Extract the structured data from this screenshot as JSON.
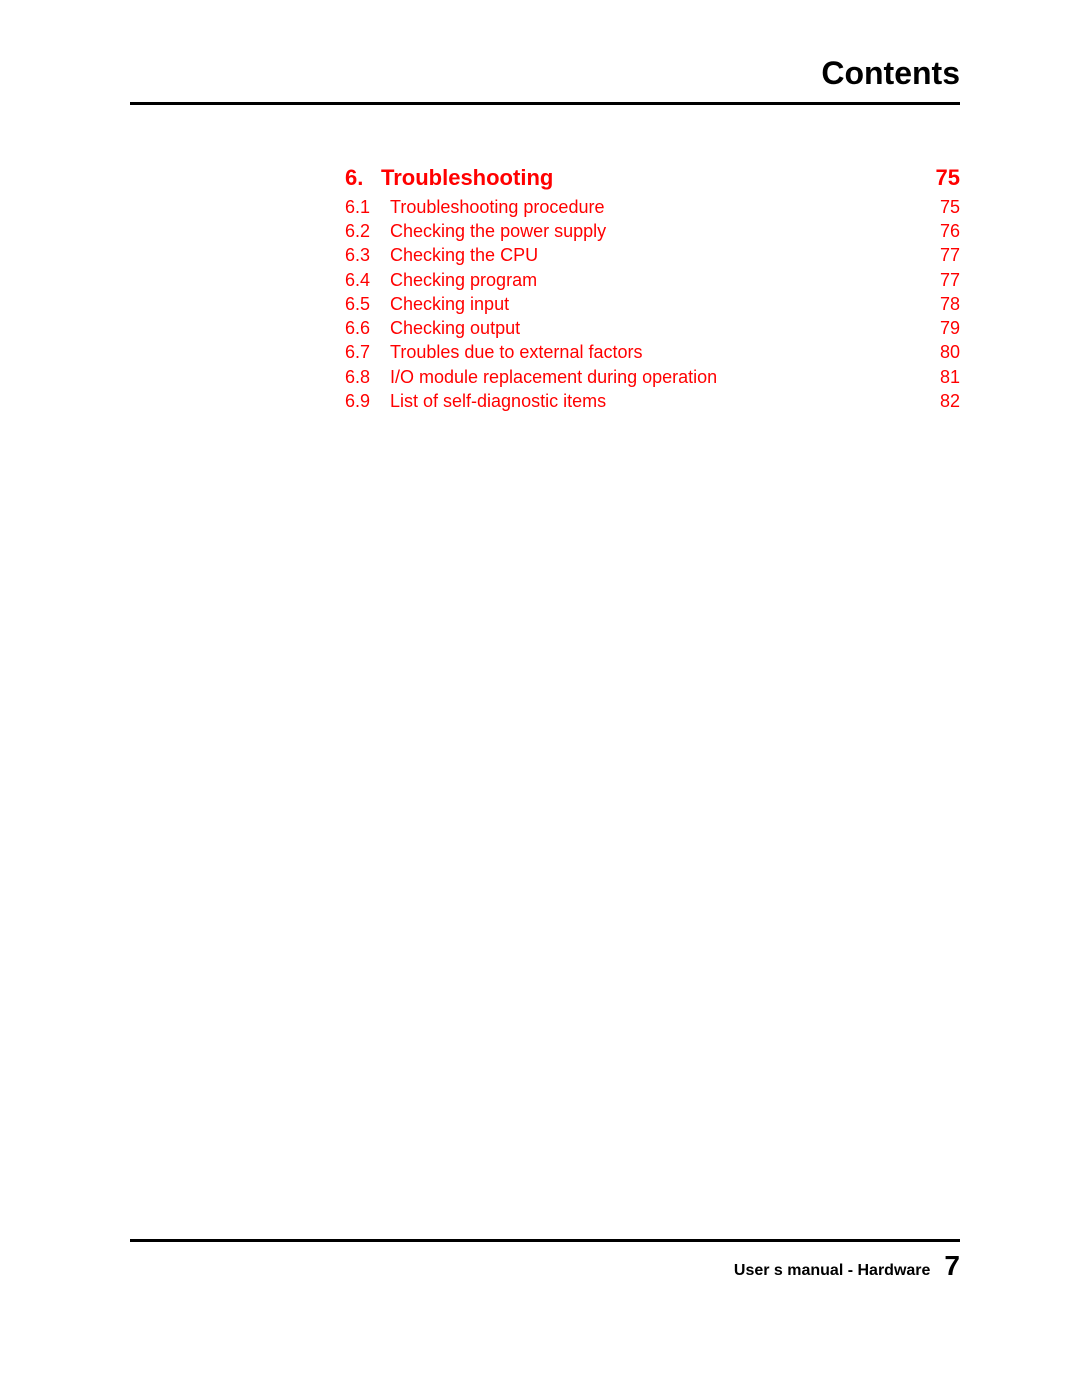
{
  "header": {
    "title": "Contents"
  },
  "toc": {
    "text_color": "#ff0000",
    "section": {
      "number": "6.",
      "title": "Troubleshooting",
      "page": "75"
    },
    "entries": [
      {
        "number": "6.1",
        "title": "Troubleshooting procedure",
        "page": "75"
      },
      {
        "number": "6.2",
        "title": "Checking the power supply",
        "page": "76"
      },
      {
        "number": "6.3",
        "title": "Checking the CPU",
        "page": "77"
      },
      {
        "number": "6.4",
        "title": "Checking program",
        "page": "77"
      },
      {
        "number": "6.5",
        "title": "Checking input",
        "page": "78"
      },
      {
        "number": "6.6",
        "title": "Checking output",
        "page": "79"
      },
      {
        "number": "6.7",
        "title": "Troubles due to external factors",
        "page": "80"
      },
      {
        "number": "6.8",
        "title": "I/O module replacement during operation",
        "page": "81"
      },
      {
        "number": "6.9",
        "title": "List of self-diagnostic items",
        "page": "82"
      }
    ]
  },
  "footer": {
    "text": "User s manual - Hardware",
    "page_number": "7"
  },
  "colors": {
    "accent": "#ff0000",
    "text": "#000000",
    "background": "#ffffff",
    "rule": "#000000"
  }
}
